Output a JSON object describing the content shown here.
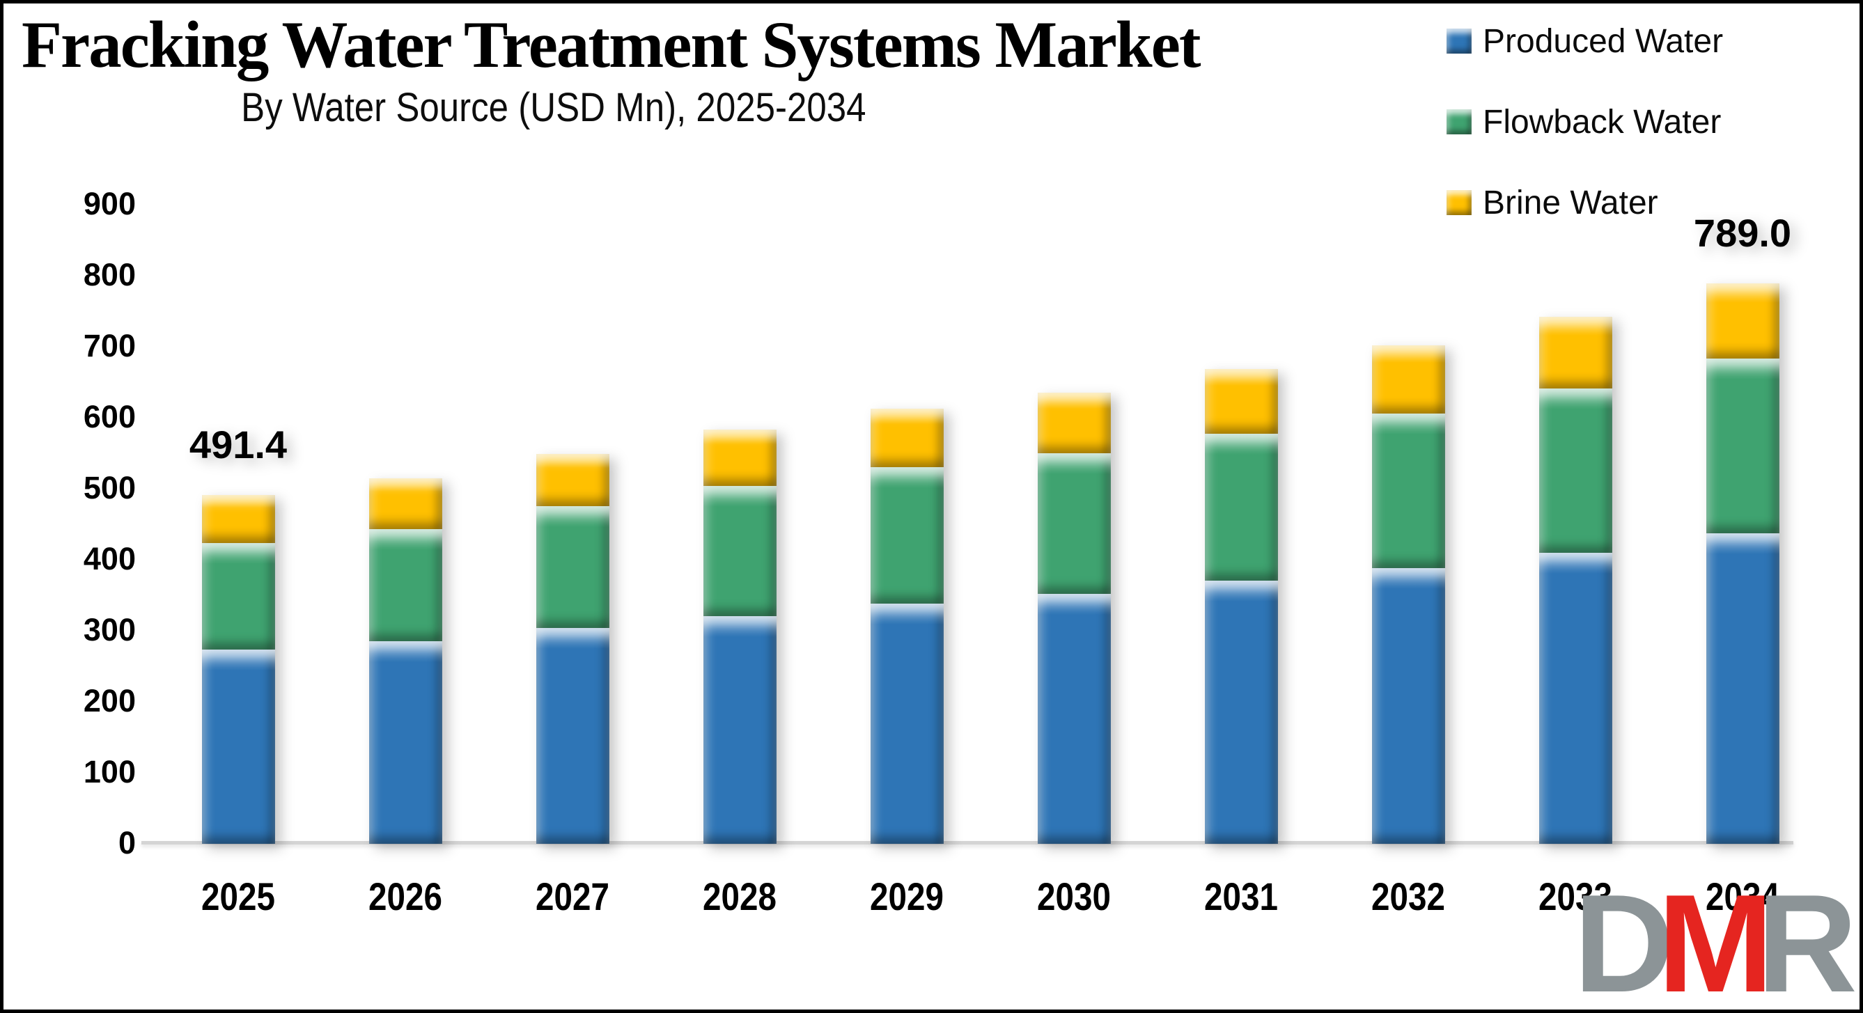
{
  "title": "Fracking Water Treatment Systems Market",
  "subtitle": "By Water Source (USD Mn), 2025-2034",
  "legend": [
    {
      "label": "Produced Water",
      "color": "#2E75B6"
    },
    {
      "label": "Flowback Water",
      "color": "#3FA370"
    },
    {
      "label": "Brine Water",
      "color": "#FFC000"
    }
  ],
  "chart_data": {
    "type": "bar",
    "stacked": true,
    "title": "Fracking Water Treatment Systems Market",
    "subtitle": "By Water Source (USD Mn), 2025-2034",
    "unit": "USD Mn",
    "categories": [
      "2025",
      "2026",
      "2027",
      "2028",
      "2029",
      "2030",
      "2031",
      "2032",
      "2033",
      "2034"
    ],
    "series": [
      {
        "name": "Produced Water",
        "color": "#2E75B6",
        "values": [
          273.2,
          285.0,
          303.5,
          321.0,
          338.5,
          352.0,
          370.5,
          388.5,
          409.5,
          437.5
        ]
      },
      {
        "name": "Flowback Water",
        "color": "#3FA370",
        "values": [
          150.4,
          158.5,
          172.0,
          183.0,
          191.5,
          198.0,
          207.0,
          217.5,
          232.0,
          245.5
        ]
      },
      {
        "name": "Brine Water",
        "color": "#FFC000",
        "values": [
          67.8,
          71.5,
          73.5,
          79.0,
          83.0,
          85.0,
          91.5,
          96.0,
          100.5,
          106.0
        ]
      }
    ],
    "totals": [
      491.4,
      515.0,
      549.0,
      583.0,
      613.0,
      635.0,
      669.0,
      702.0,
      742.0,
      789.0
    ],
    "totals_labeled": {
      "2025": "491.4",
      "2034": "789.0"
    },
    "ylim": [
      0,
      900
    ],
    "yticks": [
      0,
      100,
      200,
      300,
      400,
      500,
      600,
      700,
      800,
      900
    ],
    "grid": false,
    "legend_position": "top-right",
    "axis_line_color": "#D4D4D4"
  },
  "logo": {
    "letters": [
      {
        "char": "D",
        "color": "#8C9497"
      },
      {
        "char": "M",
        "color": "#E52520"
      },
      {
        "char": "R",
        "color": "#8C9497"
      }
    ]
  }
}
